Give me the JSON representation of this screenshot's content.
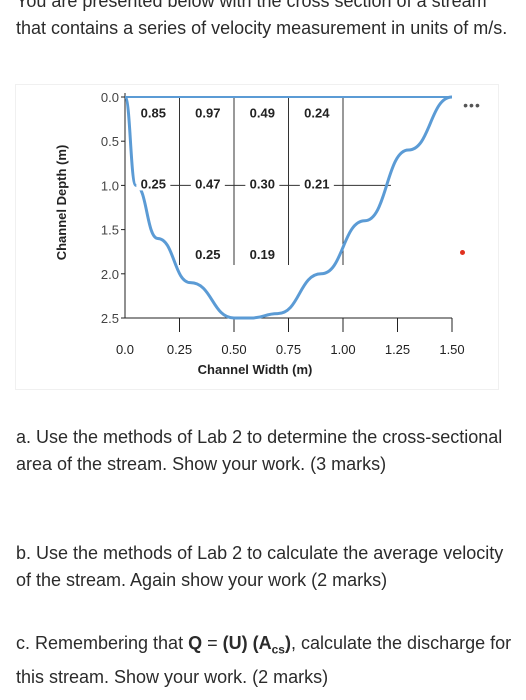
{
  "intro": {
    "text": "You are presented below with the cross section of a stream that contains a series of velocity measurement in units of m/s."
  },
  "chart_data": {
    "type": "scatter",
    "title": "",
    "xlabel": "Channel Width (m)",
    "ylabel": "Channel Depth (m)",
    "xlim": [
      0,
      1.5
    ],
    "ylim": [
      0,
      2.5
    ],
    "y_inverted": true,
    "x_ticks": [
      "0.0",
      "0.25",
      "0.50",
      "0.75",
      "1.00",
      "1.25",
      "1.50"
    ],
    "y_ticks": [
      "0.0",
      "0.5",
      "1.0",
      "1.5",
      "2.0",
      "2.5"
    ],
    "channel_profile": {
      "x": [
        0.0,
        0.05,
        0.15,
        0.3,
        0.5,
        0.58,
        0.7,
        0.9,
        1.1,
        1.3,
        1.5
      ],
      "y": [
        0.0,
        1.0,
        1.6,
        2.1,
        2.5,
        2.5,
        2.45,
        2.0,
        1.4,
        0.6,
        0.0
      ]
    },
    "velocity_labels": [
      {
        "x": 0.13,
        "y": 0.2,
        "label": "0.85"
      },
      {
        "x": 0.38,
        "y": 0.2,
        "label": "0.97"
      },
      {
        "x": 0.63,
        "y": 0.2,
        "label": "0.49"
      },
      {
        "x": 0.88,
        "y": 0.2,
        "label": "0.24"
      },
      {
        "x": 0.13,
        "y": 1.0,
        "label": "0.25"
      },
      {
        "x": 0.38,
        "y": 1.0,
        "label": "0.47"
      },
      {
        "x": 0.63,
        "y": 1.0,
        "label": "0.30"
      },
      {
        "x": 0.88,
        "y": 1.0,
        "label": "0.21"
      },
      {
        "x": 0.38,
        "y": 1.8,
        "label": "0.25"
      },
      {
        "x": 0.63,
        "y": 1.8,
        "label": "0.19"
      }
    ],
    "vertical_lines_x": [
      0.25,
      0.5,
      0.75,
      1.0
    ],
    "horizontal_line_y": 1.0,
    "grid": true,
    "colors": {
      "channel": "#5b9bd5",
      "grid": "#222222",
      "text": "#222222"
    }
  },
  "menu": {
    "icon": "more-horizontal-icon",
    "label": "•••"
  },
  "questions": {
    "a": "a. Use the methods of Lab 2 to determine the cross-sectional area of the stream. Show your work. (3 marks)",
    "b": "b. Use the methods of Lab 2 to calculate the average velocity of the stream. Again show your work (2 marks)",
    "c_prefix": "c. Remembering that ",
    "c_formula_q": "Q",
    "c_formula_eq": " = ",
    "c_formula_u": "(U)",
    "c_formula_a": "(A",
    "c_formula_sub": "cs",
    "c_formula_close": ")",
    "c_suffix": ", calculate the discharge for this stream. Show your work. (2 marks)"
  }
}
